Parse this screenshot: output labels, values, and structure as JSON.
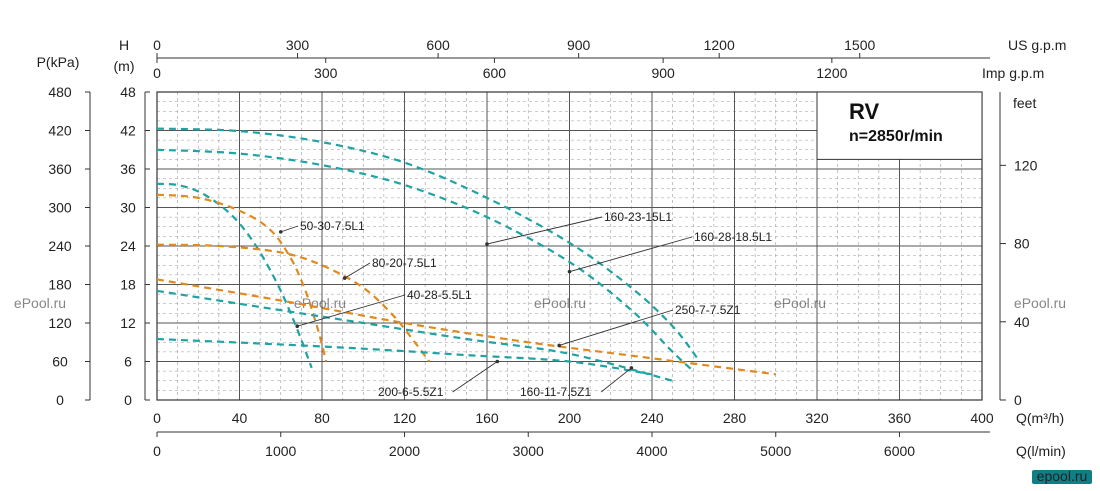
{
  "chart_data": {
    "type": "line",
    "title": "RV",
    "subtitle": "n=2850r/min",
    "watermark": "ePool.ru",
    "brand": "epool.ru",
    "axes": {
      "q_m3h": {
        "label": "Q(m³/h)",
        "min": 0,
        "max": 400,
        "ticks": [
          0,
          40,
          80,
          120,
          160,
          200,
          240,
          280,
          320,
          360,
          400
        ]
      },
      "q_lmin": {
        "label": "Q(l/min)",
        "min": 0,
        "max": 6666.7,
        "ticks": [
          0,
          1000,
          2000,
          3000,
          4000,
          5000,
          6000
        ]
      },
      "us_gpm": {
        "label": "US g.p.m",
        "min": 0,
        "max": 1761,
        "ticks": [
          0,
          300,
          600,
          900,
          1200,
          1500
        ]
      },
      "imp_gpm": {
        "label": "Imp g.p.m",
        "min": 0,
        "max": 1467,
        "ticks": [
          0,
          300,
          600,
          900,
          1200
        ]
      },
      "h_m": {
        "label_top": "H",
        "label_unit": "(m)",
        "min": 0,
        "max": 48,
        "ticks": [
          0,
          6,
          12,
          18,
          24,
          30,
          36,
          42,
          48
        ]
      },
      "p_kpa": {
        "label": "P(kPa)",
        "min": 0,
        "max": 480,
        "ticks": [
          0,
          60,
          120,
          180,
          240,
          300,
          360,
          420,
          480
        ]
      },
      "feet": {
        "label": "feet",
        "min": 0,
        "max": 157.5,
        "ticks": [
          0,
          40,
          80,
          120
        ]
      }
    },
    "grid": true,
    "series": [
      {
        "name": "160-28-18.5L1",
        "color": "#1fa3a3",
        "points": [
          [
            0,
            42.3
          ],
          [
            40,
            41.9
          ],
          [
            80,
            40.2
          ],
          [
            120,
            37.0
          ],
          [
            160,
            31.5
          ],
          [
            200,
            24.5
          ],
          [
            230,
            17.5
          ],
          [
            250,
            11.5
          ],
          [
            262,
            6.5
          ]
        ]
      },
      {
        "name": "160-23-15L1",
        "color": "#1fa3a3",
        "points": [
          [
            0,
            39.0
          ],
          [
            40,
            38.4
          ],
          [
            80,
            36.6
          ],
          [
            120,
            33.5
          ],
          [
            160,
            28.5
          ],
          [
            200,
            21.5
          ],
          [
            230,
            14.0
          ],
          [
            250,
            7.5
          ],
          [
            260,
            4.5
          ]
        ]
      },
      {
        "name": "50-30-7.5L1",
        "color": "#1fa3a3",
        "points": [
          [
            0,
            33.7
          ],
          [
            10,
            33.5
          ],
          [
            20,
            32.5
          ],
          [
            30,
            30.5
          ],
          [
            40,
            27.5
          ],
          [
            50,
            23.0
          ],
          [
            60,
            17.0
          ],
          [
            68,
            11.0
          ],
          [
            75,
            5.0
          ]
        ]
      },
      {
        "name": "80-20-7.5L1",
        "color": "#e08a1e",
        "points": [
          [
            0,
            32.0
          ],
          [
            20,
            31.5
          ],
          [
            40,
            29.5
          ],
          [
            55,
            26.5
          ],
          [
            65,
            22.0
          ],
          [
            72,
            17.0
          ],
          [
            78,
            11.0
          ],
          [
            82,
            6.0
          ]
        ]
      },
      {
        "name": "40-28-5.5L1",
        "color": "#e08a1e",
        "points": [
          [
            0,
            24.2
          ],
          [
            30,
            24.0
          ],
          [
            60,
            23.0
          ],
          [
            80,
            21.0
          ],
          [
            100,
            17.5
          ],
          [
            115,
            13.0
          ],
          [
            125,
            9.0
          ],
          [
            132,
            6.0
          ]
        ]
      },
      {
        "name": "250-7-7.5Z1",
        "color": "#e08a1e",
        "points": [
          [
            0,
            18.8
          ],
          [
            60,
            15.5
          ],
          [
            120,
            12.0
          ],
          [
            180,
            9.0
          ],
          [
            240,
            6.5
          ],
          [
            300,
            4.0
          ]
        ]
      },
      {
        "name": "200-6-5.5Z1",
        "color": "#1fa3a3",
        "points": [
          [
            0,
            17.0
          ],
          [
            50,
            14.5
          ],
          [
            100,
            12.0
          ],
          [
            150,
            9.5
          ],
          [
            200,
            7.2
          ],
          [
            250,
            3.0
          ]
        ]
      },
      {
        "name": "160-11-7.5Z1",
        "color": "#1fa3a3",
        "points": [
          [
            0,
            9.5
          ],
          [
            50,
            8.8
          ],
          [
            100,
            8.0
          ],
          [
            150,
            7.0
          ],
          [
            200,
            6.0
          ],
          [
            240,
            4.0
          ]
        ]
      }
    ],
    "labels": [
      {
        "text": "160-23-15L1",
        "series": "160-23-15L1",
        "at": [
          160,
          24.3
        ]
      },
      {
        "text": "160-28-18.5L1",
        "series": "160-28-18.5L1",
        "at": [
          200,
          20.0
        ]
      },
      {
        "text": "50-30-7.5L1",
        "series": "50-30-7.5L1",
        "at": [
          60,
          26.2
        ]
      },
      {
        "text": "80-20-7.5L1",
        "series": "80-20-7.5L1",
        "at": [
          91,
          19.0
        ]
      },
      {
        "text": "40-28-5.5L1",
        "series": "40-28-5.5L1",
        "at": [
          68,
          11.5
        ]
      },
      {
        "text": "250-7-7.5Z1",
        "series": "250-7-7.5Z1",
        "at": [
          195,
          8.5
        ]
      },
      {
        "text": "200-6-5.5Z1",
        "series": "200-6-5.5Z1",
        "at": [
          165,
          6.0
        ]
      },
      {
        "text": "160-11-7.5Z1",
        "series": "160-11-7.5Z1",
        "at": [
          230,
          5.0
        ]
      }
    ]
  }
}
